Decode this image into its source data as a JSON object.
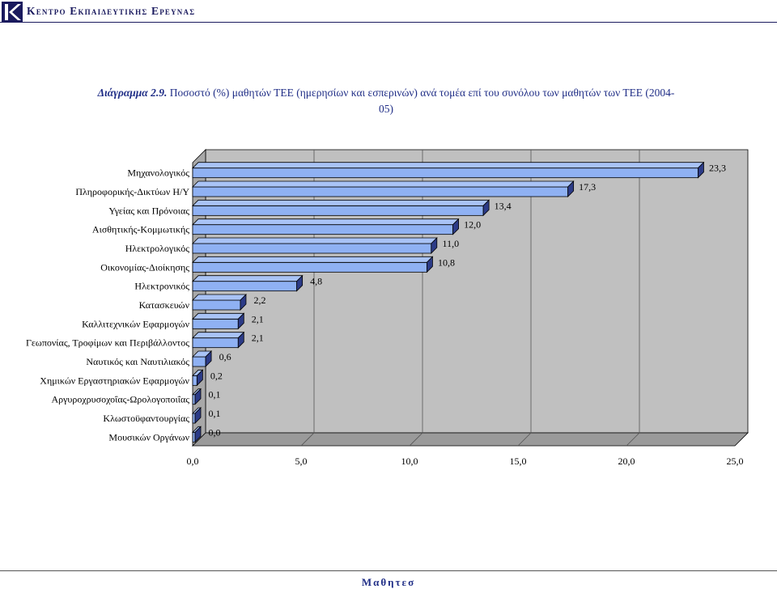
{
  "header": {
    "title": "Κεντρο Εκπαιδευτικης Ερευνας"
  },
  "caption": {
    "label": "Διάγραμμα 2.9.",
    "text": "Ποσοστό (%) μαθητών ΤΕΕ (ημερησίων και εσπερινών) ανά τομέα επί του συνόλου των μαθητών των ΤΕΕ (2004-05)"
  },
  "footer": {
    "text": "Μαθητεσ"
  },
  "colors": {
    "bar_fill": "#8fb1f3",
    "bar_top": "#a9c3f6",
    "bar_side": "#2c3b87",
    "wall": "#c0c0c0",
    "floor": "#9a9a9a"
  },
  "chart_data": {
    "type": "bar",
    "orientation": "horizontal",
    "style": "3d",
    "categories": [
      "Μηχανολογικός",
      "Πληροφορικής-Δικτύων Η/Υ",
      "Υγείας και Πρόνοιας",
      "Αισθητικής-Κομμωτικής",
      "Ηλεκτρολογικός",
      "Οικονομίας-Διοίκησης",
      "Ηλεκτρονικός",
      "Κατασκευών",
      "Καλλιτεχνικών Εφαρμογών",
      "Γεωπονίας, Τροφίμων και Περιβάλλοντος",
      "Ναυτικός και Ναυτιλιακός",
      "Χημικών Εργαστηριακών Εφαρμογών",
      "Αργυροχρυσοχοΐας-Ωρολογοποιΐας",
      "Κλωστοϋφαντουργίας",
      "Μουσικών Οργάνων"
    ],
    "values": [
      23.3,
      17.3,
      13.4,
      12.0,
      11.0,
      10.8,
      4.8,
      2.2,
      2.1,
      2.1,
      0.6,
      0.2,
      0.1,
      0.1,
      0.0
    ],
    "value_labels": [
      "23,3",
      "17,3",
      "13,4",
      "12,0",
      "11,0",
      "10,8",
      "4,8",
      "2,2",
      "2,1",
      "2,1",
      "0,6",
      "0,2",
      "0,1",
      "0,1",
      "0,0"
    ],
    "xlim": [
      0,
      25
    ],
    "x_ticks": [
      0,
      5,
      10,
      15,
      20,
      25
    ],
    "x_tick_labels": [
      "0,0",
      "5,0",
      "10,0",
      "15,0",
      "20,0",
      "25,0"
    ],
    "grid": true,
    "legend": "none"
  }
}
